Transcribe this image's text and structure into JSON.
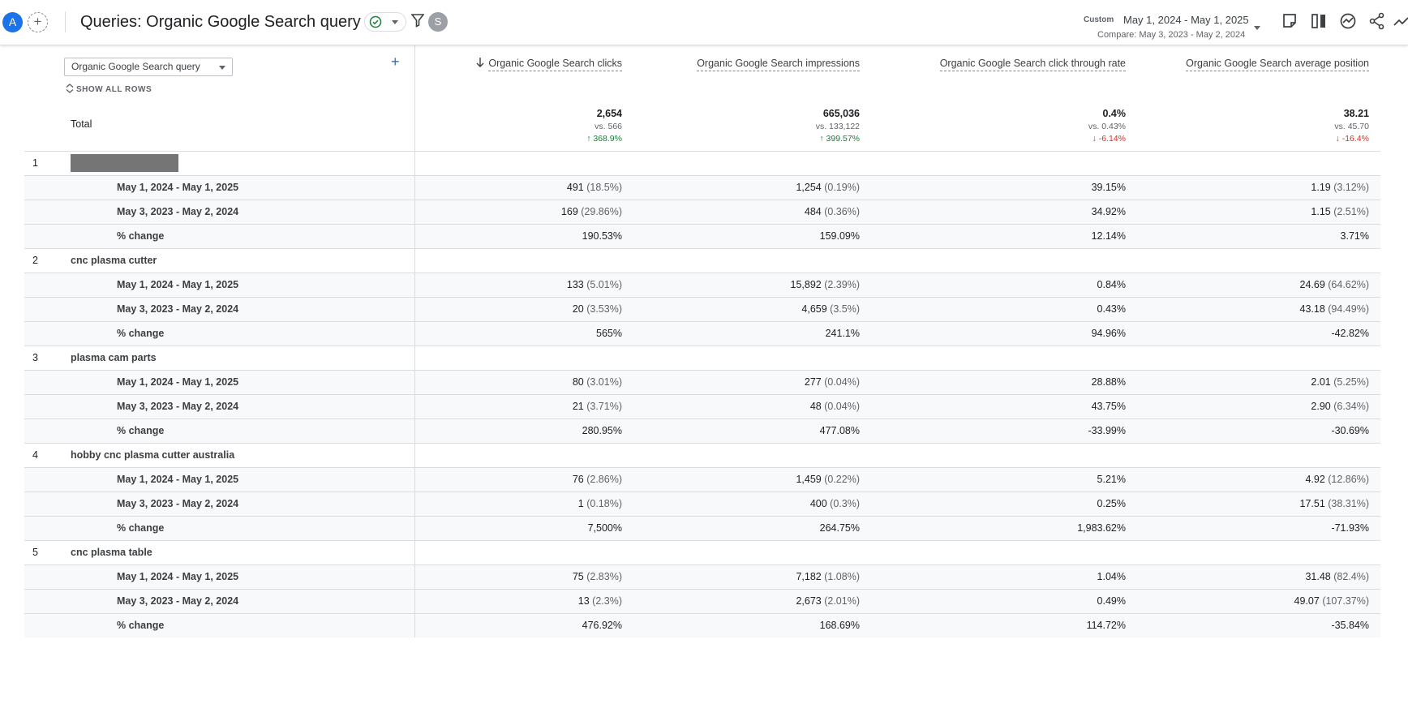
{
  "header": {
    "avatar": "A",
    "add_compare": "+",
    "title": "Queries: Organic Google Search query",
    "badge": "S",
    "date_type": "Custom",
    "date_range": "May 1, 2024 - May 1, 2025",
    "compare": "Compare: May 3, 2023 - May 2, 2024"
  },
  "table": {
    "dimension": "Organic Google Search query",
    "add_dimension": "+",
    "show_all_rows": "SHOW ALL ROWS",
    "columns": [
      {
        "label": "Organic Google Search clicks"
      },
      {
        "label": "Organic Google Search impressions"
      },
      {
        "label": "Organic Google Search click through rate"
      },
      {
        "label": "Organic Google Search average position"
      }
    ],
    "total": {
      "label": "Total",
      "values": [
        {
          "value": "2,654",
          "vs": "vs. 566",
          "change": "368.9%",
          "dir": "up"
        },
        {
          "value": "665,036",
          "vs": "vs. 133,122",
          "change": "399.57%",
          "dir": "up"
        },
        {
          "value": "0.4%",
          "vs": "vs. 0.43%",
          "change": "-6.14%",
          "dir": "down"
        },
        {
          "value": "38.21",
          "vs": "vs. 45.70",
          "change": "-16.4%",
          "dir": "down"
        }
      ]
    },
    "rows": [
      {
        "index": "1",
        "query": "",
        "redacted": true,
        "sub": [
          {
            "label": "May 1, 2024 - May 1, 2025",
            "cells": [
              [
                "491",
                "(18.5%)"
              ],
              [
                "1,254",
                "(0.19%)"
              ],
              [
                "39.15%",
                ""
              ],
              [
                "1.19",
                "(3.12%)"
              ]
            ]
          },
          {
            "label": "May 3, 2023 - May 2, 2024",
            "cells": [
              [
                "169",
                "(29.86%)"
              ],
              [
                "484",
                "(0.36%)"
              ],
              [
                "34.92%",
                ""
              ],
              [
                "1.15",
                "(2.51%)"
              ]
            ]
          },
          {
            "label": "% change",
            "cells": [
              [
                "190.53%",
                ""
              ],
              [
                "159.09%",
                ""
              ],
              [
                "12.14%",
                ""
              ],
              [
                "3.71%",
                ""
              ]
            ]
          }
        ]
      },
      {
        "index": "2",
        "query": "cnc plasma cutter",
        "redacted": false,
        "sub": [
          {
            "label": "May 1, 2024 - May 1, 2025",
            "cells": [
              [
                "133",
                "(5.01%)"
              ],
              [
                "15,892",
                "(2.39%)"
              ],
              [
                "0.84%",
                ""
              ],
              [
                "24.69",
                "(64.62%)"
              ]
            ]
          },
          {
            "label": "May 3, 2023 - May 2, 2024",
            "cells": [
              [
                "20",
                "(3.53%)"
              ],
              [
                "4,659",
                "(3.5%)"
              ],
              [
                "0.43%",
                ""
              ],
              [
                "43.18",
                "(94.49%)"
              ]
            ]
          },
          {
            "label": "% change",
            "cells": [
              [
                "565%",
                ""
              ],
              [
                "241.1%",
                ""
              ],
              [
                "94.96%",
                ""
              ],
              [
                "-42.82%",
                ""
              ]
            ]
          }
        ]
      },
      {
        "index": "3",
        "query": "plasma cam parts",
        "redacted": false,
        "sub": [
          {
            "label": "May 1, 2024 - May 1, 2025",
            "cells": [
              [
                "80",
                "(3.01%)"
              ],
              [
                "277",
                "(0.04%)"
              ],
              [
                "28.88%",
                ""
              ],
              [
                "2.01",
                "(5.25%)"
              ]
            ]
          },
          {
            "label": "May 3, 2023 - May 2, 2024",
            "cells": [
              [
                "21",
                "(3.71%)"
              ],
              [
                "48",
                "(0.04%)"
              ],
              [
                "43.75%",
                ""
              ],
              [
                "2.90",
                "(6.34%)"
              ]
            ]
          },
          {
            "label": "% change",
            "cells": [
              [
                "280.95%",
                ""
              ],
              [
                "477.08%",
                ""
              ],
              [
                "-33.99%",
                ""
              ],
              [
                "-30.69%",
                ""
              ]
            ]
          }
        ]
      },
      {
        "index": "4",
        "query": "hobby cnc plasma cutter australia",
        "redacted": false,
        "sub": [
          {
            "label": "May 1, 2024 - May 1, 2025",
            "cells": [
              [
                "76",
                "(2.86%)"
              ],
              [
                "1,459",
                "(0.22%)"
              ],
              [
                "5.21%",
                ""
              ],
              [
                "4.92",
                "(12.86%)"
              ]
            ]
          },
          {
            "label": "May 3, 2023 - May 2, 2024",
            "cells": [
              [
                "1",
                "(0.18%)"
              ],
              [
                "400",
                "(0.3%)"
              ],
              [
                "0.25%",
                ""
              ],
              [
                "17.51",
                "(38.31%)"
              ]
            ]
          },
          {
            "label": "% change",
            "cells": [
              [
                "7,500%",
                ""
              ],
              [
                "264.75%",
                ""
              ],
              [
                "1,983.62%",
                ""
              ],
              [
                "-71.93%",
                ""
              ]
            ]
          }
        ]
      },
      {
        "index": "5",
        "query": "cnc plasma table",
        "redacted": false,
        "sub": [
          {
            "label": "May 1, 2024 - May 1, 2025",
            "cells": [
              [
                "75",
                "(2.83%)"
              ],
              [
                "7,182",
                "(1.08%)"
              ],
              [
                "1.04%",
                ""
              ],
              [
                "31.48",
                "(82.4%)"
              ]
            ]
          },
          {
            "label": "May 3, 2023 - May 2, 2024",
            "cells": [
              [
                "13",
                "(2.3%)"
              ],
              [
                "2,673",
                "(2.01%)"
              ],
              [
                "0.49%",
                ""
              ],
              [
                "49.07",
                "(107.37%)"
              ]
            ]
          },
          {
            "label": "% change",
            "cells": [
              [
                "476.92%",
                ""
              ],
              [
                "168.69%",
                ""
              ],
              [
                "114.72%",
                ""
              ],
              [
                "-35.84%",
                ""
              ]
            ]
          }
        ]
      }
    ]
  },
  "colors": {
    "accent": "#1a73e8",
    "up": "#188038",
    "down": "#d93025"
  }
}
